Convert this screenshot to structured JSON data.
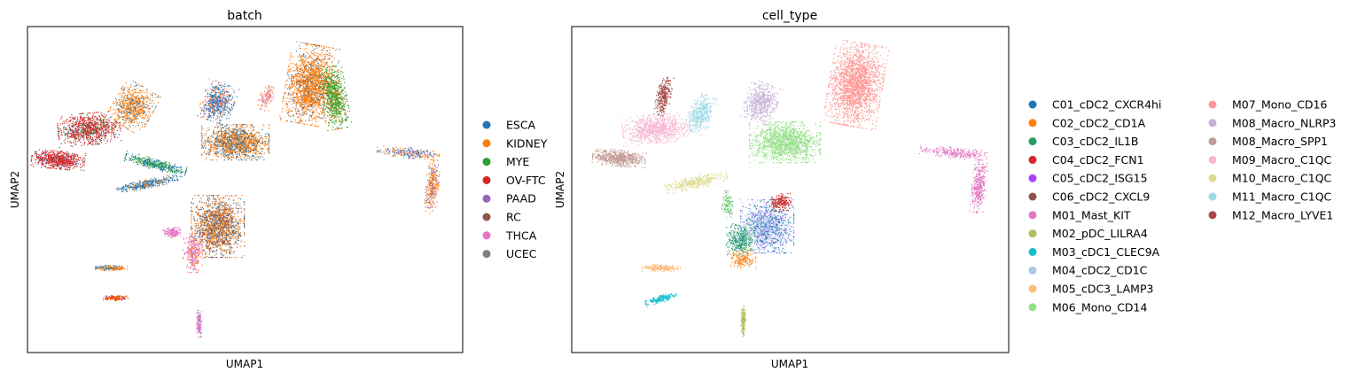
{
  "chart_data": [
    {
      "type": "scatter",
      "title": "batch",
      "xlabel": "UMAP1",
      "ylabel": "UMAP2",
      "grid": false,
      "ticks": false,
      "legend": "right",
      "series": [
        {
          "name": "ESCA",
          "color": "#1f77b4"
        },
        {
          "name": "KIDNEY",
          "color": "#ff7f0e"
        },
        {
          "name": "MYE",
          "color": "#2ca02c"
        },
        {
          "name": "OV-FTC",
          "color": "#d62728"
        },
        {
          "name": "PAAD",
          "color": "#9467bd"
        },
        {
          "name": "RC",
          "color": "#8c564b"
        },
        {
          "name": "THCA",
          "color": "#e377c2"
        },
        {
          "name": "UCEC",
          "color": "#7f7f7f"
        }
      ]
    },
    {
      "type": "scatter",
      "title": "cell_type",
      "xlabel": "UMAP1",
      "ylabel": "UMAP2",
      "grid": false,
      "ticks": false,
      "legend": "right",
      "series": [
        {
          "name": "C01_cDC2_CXCR4hi",
          "color": "#1f77b4"
        },
        {
          "name": "C02_cDC2_CD1A",
          "color": "#ff7f0e"
        },
        {
          "name": "C03_cDC2_IL1B",
          "color": "#279e68"
        },
        {
          "name": "C04_cDC2_FCN1",
          "color": "#d62728"
        },
        {
          "name": "C05_cDC2_ISG15",
          "color": "#aa40fc"
        },
        {
          "name": "C06_cDC2_CXCL9",
          "color": "#8c564b"
        },
        {
          "name": "M01_Mast_KIT",
          "color": "#e377c2"
        },
        {
          "name": "M02_pDC_LILRA4",
          "color": "#b5bd61"
        },
        {
          "name": "M03_cDC1_CLEC9A",
          "color": "#17becf"
        },
        {
          "name": "M04_cDC2_CD1C",
          "color": "#aec7e8"
        },
        {
          "name": "M05_cDC3_LAMP3",
          "color": "#ffbb78"
        },
        {
          "name": "M06_Mono_CD14",
          "color": "#98df8a"
        },
        {
          "name": "M07_Mono_CD16",
          "color": "#ff9896"
        },
        {
          "name": "M08_Macro_NLRP3",
          "color": "#c5b0d5"
        },
        {
          "name": "M08_Macro_SPP1",
          "color": "#c49c94"
        },
        {
          "name": "M09_Macro_C1QC",
          "color": "#f7b6d2"
        },
        {
          "name": "M10_Macro_C1QC",
          "color": "#dbdb8d"
        },
        {
          "name": "M11_Macro_C1QC",
          "color": "#9edae5"
        },
        {
          "name": "M12_Macro_LYVE1",
          "color": "#ad494a"
        }
      ]
    }
  ]
}
